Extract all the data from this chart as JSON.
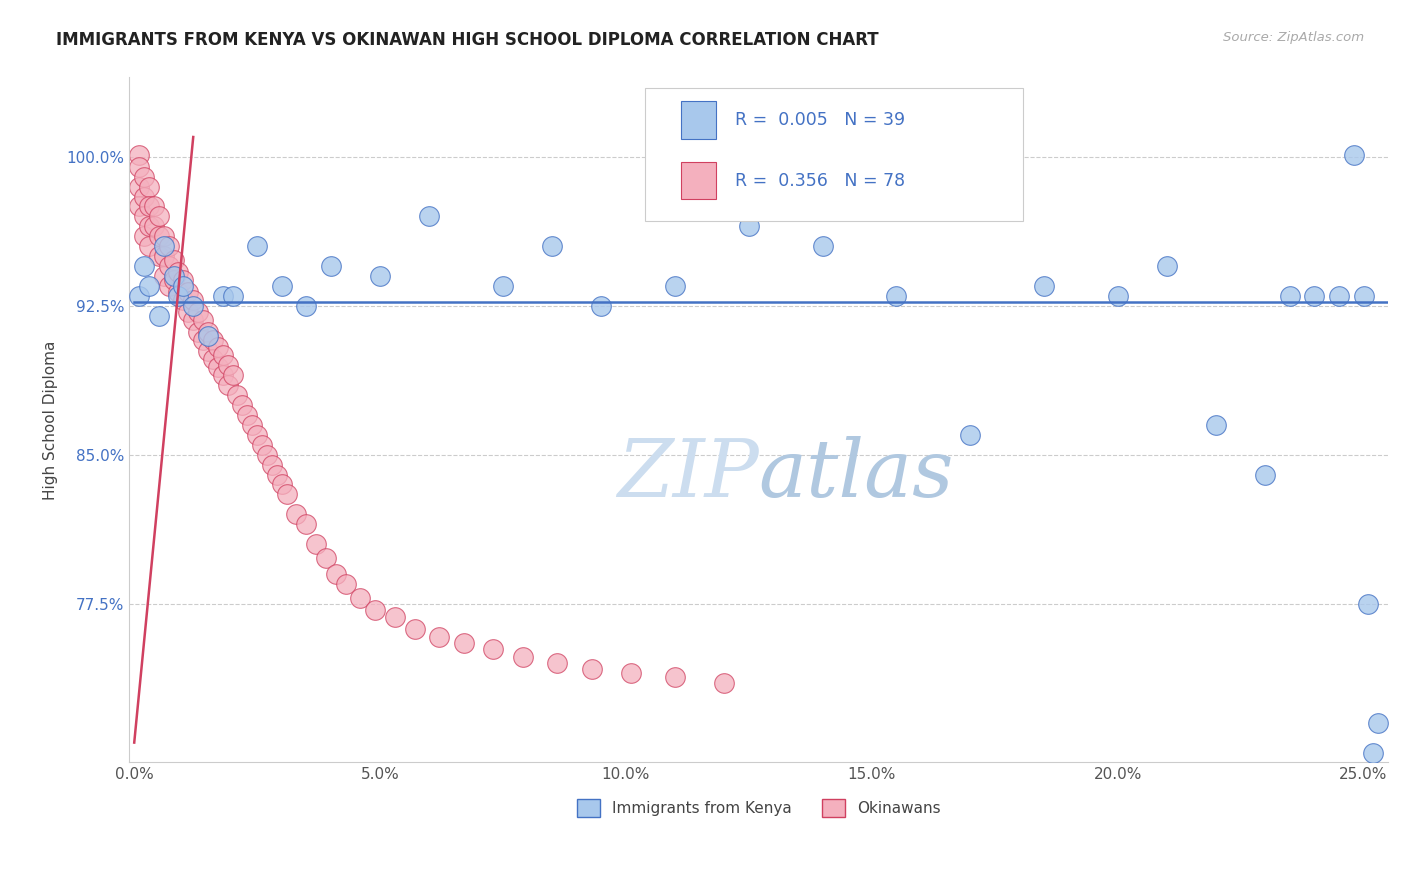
{
  "title": "IMMIGRANTS FROM KENYA VS OKINAWAN HIGH SCHOOL DIPLOMA CORRELATION CHART",
  "source": "Source: ZipAtlas.com",
  "ylabel": "High School Diploma",
  "legend_label1": "Immigrants from Kenya",
  "legend_label2": "Okinawans",
  "R1": 0.005,
  "N1": 39,
  "R2": 0.356,
  "N2": 78,
  "xlim": [
    -0.001,
    0.255
  ],
  "ylim": [
    0.695,
    1.04
  ],
  "xtick_labels": [
    "0.0%",
    "5.0%",
    "10.0%",
    "15.0%",
    "20.0%",
    "25.0%"
  ],
  "xtick_vals": [
    0.0,
    0.05,
    0.1,
    0.15,
    0.2,
    0.25
  ],
  "ytick_labels": [
    "77.5%",
    "85.0%",
    "92.5%",
    "100.0%"
  ],
  "ytick_vals": [
    0.775,
    0.85,
    0.925,
    1.0
  ],
  "color_blue": "#a8c8ec",
  "color_pink": "#f4b0be",
  "color_blue_dark": "#4472c4",
  "color_pink_dark": "#d04060",
  "color_title": "#222222",
  "color_axis_label": "#444444",
  "color_tick_blue": "#4472c4",
  "color_grid": "#cccccc",
  "color_source": "#aaaaaa",
  "color_watermark": "#ccddef",
  "blue_x": [
    0.001,
    0.002,
    0.003,
    0.005,
    0.006,
    0.008,
    0.009,
    0.01,
    0.012,
    0.015,
    0.018,
    0.02,
    0.025,
    0.03,
    0.035,
    0.04,
    0.05,
    0.06,
    0.075,
    0.085,
    0.095,
    0.11,
    0.125,
    0.14,
    0.155,
    0.17,
    0.185,
    0.2,
    0.21,
    0.22,
    0.23,
    0.235,
    0.24,
    0.245,
    0.248,
    0.25,
    0.251,
    0.252,
    0.253
  ],
  "blue_y": [
    0.93,
    0.945,
    0.935,
    0.92,
    0.955,
    0.94,
    0.93,
    0.935,
    0.925,
    0.91,
    0.93,
    0.93,
    0.955,
    0.935,
    0.925,
    0.945,
    0.94,
    0.97,
    0.935,
    0.955,
    0.925,
    0.935,
    0.965,
    0.955,
    0.93,
    0.86,
    0.935,
    0.93,
    0.945,
    0.865,
    0.84,
    0.93,
    0.93,
    0.93,
    1.001,
    0.93,
    0.775,
    0.7,
    0.715
  ],
  "pink_x": [
    0.001,
    0.001,
    0.001,
    0.001,
    0.002,
    0.002,
    0.002,
    0.002,
    0.003,
    0.003,
    0.003,
    0.003,
    0.004,
    0.004,
    0.005,
    0.005,
    0.005,
    0.006,
    0.006,
    0.006,
    0.007,
    0.007,
    0.007,
    0.008,
    0.008,
    0.009,
    0.009,
    0.01,
    0.01,
    0.011,
    0.011,
    0.012,
    0.012,
    0.013,
    0.013,
    0.014,
    0.014,
    0.015,
    0.015,
    0.016,
    0.016,
    0.017,
    0.017,
    0.018,
    0.018,
    0.019,
    0.019,
    0.02,
    0.021,
    0.022,
    0.023,
    0.024,
    0.025,
    0.026,
    0.027,
    0.028,
    0.029,
    0.03,
    0.031,
    0.033,
    0.035,
    0.037,
    0.039,
    0.041,
    0.043,
    0.046,
    0.049,
    0.053,
    0.057,
    0.062,
    0.067,
    0.073,
    0.079,
    0.086,
    0.093,
    0.101,
    0.11,
    0.12
  ],
  "pink_y": [
    1.001,
    0.995,
    0.985,
    0.975,
    0.99,
    0.98,
    0.97,
    0.96,
    0.985,
    0.975,
    0.965,
    0.955,
    0.975,
    0.965,
    0.97,
    0.96,
    0.95,
    0.96,
    0.95,
    0.94,
    0.955,
    0.945,
    0.935,
    0.948,
    0.938,
    0.942,
    0.932,
    0.938,
    0.928,
    0.932,
    0.922,
    0.928,
    0.918,
    0.922,
    0.912,
    0.918,
    0.908,
    0.912,
    0.902,
    0.908,
    0.898,
    0.904,
    0.894,
    0.9,
    0.89,
    0.895,
    0.885,
    0.89,
    0.88,
    0.875,
    0.87,
    0.865,
    0.86,
    0.855,
    0.85,
    0.845,
    0.84,
    0.835,
    0.83,
    0.82,
    0.815,
    0.805,
    0.798,
    0.79,
    0.785,
    0.778,
    0.772,
    0.768,
    0.762,
    0.758,
    0.755,
    0.752,
    0.748,
    0.745,
    0.742,
    0.74,
    0.738,
    0.735
  ],
  "pink_trend_x": [
    0.0,
    0.012
  ],
  "pink_trend_y": [
    0.705,
    1.01
  ],
  "blue_trend_y": 0.927
}
